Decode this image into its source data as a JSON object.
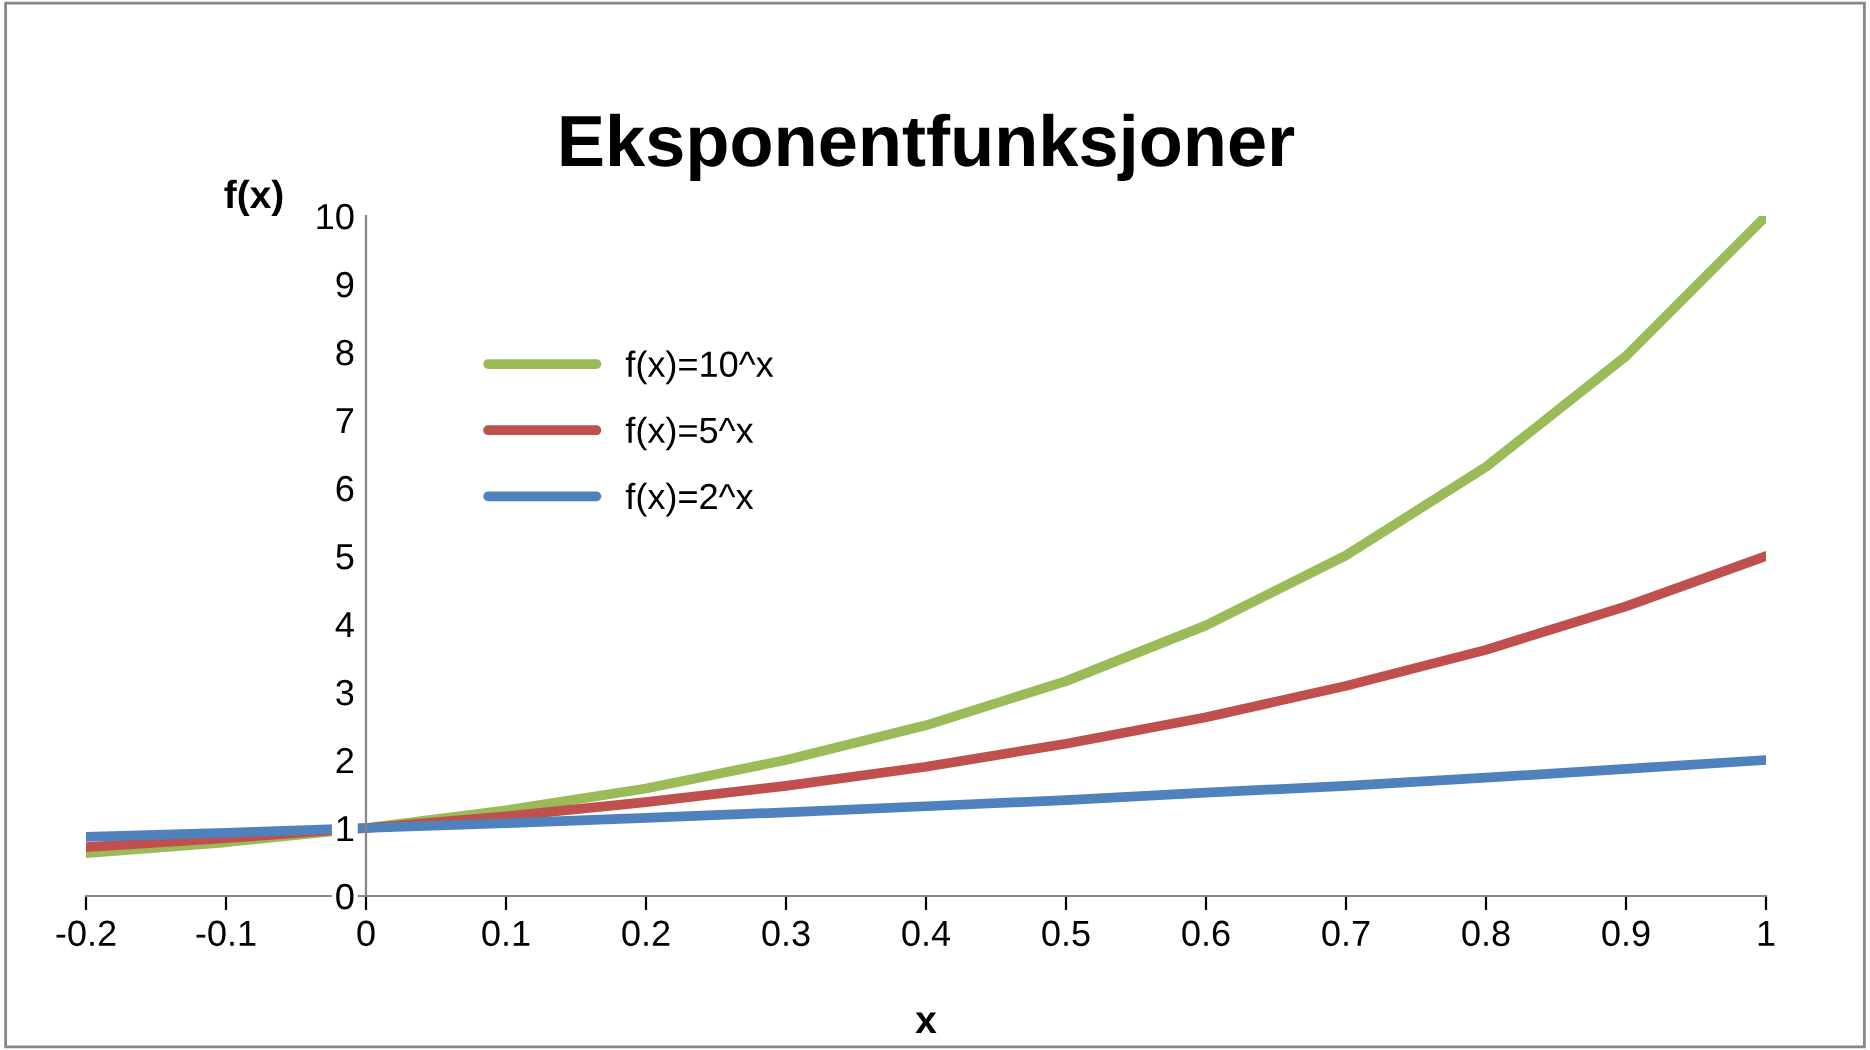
{
  "chart_data": {
    "type": "line",
    "title": "Eksponentfunksjoner",
    "xlabel": "x",
    "ylabel": "f(x)",
    "x": [
      -0.2,
      -0.1,
      0,
      0.1,
      0.2,
      0.3,
      0.4,
      0.5,
      0.6,
      0.7,
      0.8,
      0.9,
      1
    ],
    "series": [
      {
        "name": "f(x)=10^x",
        "color": "#9bbb59",
        "values": [
          0.63,
          0.79,
          1,
          1.26,
          1.58,
          2.0,
          2.51,
          3.16,
          3.98,
          5.01,
          6.31,
          7.94,
          10
        ]
      },
      {
        "name": "f(x)=5^x",
        "color": "#c0504d",
        "values": [
          0.72,
          0.85,
          1,
          1.17,
          1.38,
          1.62,
          1.9,
          2.24,
          2.63,
          3.09,
          3.62,
          4.26,
          5
        ]
      },
      {
        "name": "f(x)=2^x",
        "color": "#4f81bd",
        "values": [
          0.87,
          0.93,
          1,
          1.07,
          1.15,
          1.23,
          1.32,
          1.41,
          1.52,
          1.62,
          1.74,
          1.87,
          2
        ]
      }
    ],
    "xlim": [
      -0.2,
      1
    ],
    "xticks": [
      -0.2,
      -0.1,
      0,
      0.1,
      0.2,
      0.3,
      0.4,
      0.5,
      0.6,
      0.7,
      0.8,
      0.9,
      1
    ],
    "ylim": [
      0,
      10
    ],
    "yticks": [
      0,
      1,
      2,
      3,
      4,
      5,
      6,
      7,
      8,
      9,
      10
    ],
    "grid": false,
    "legend": "top left",
    "marker": "none",
    "line_style": "solid"
  }
}
